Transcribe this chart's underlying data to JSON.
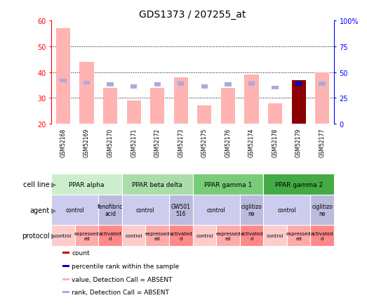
{
  "title": "GDS1373 / 207255_at",
  "samples": [
    "GSM52168",
    "GSM52169",
    "GSM52170",
    "GSM52171",
    "GSM52172",
    "GSM52173",
    "GSM52175",
    "GSM52176",
    "GSM52174",
    "GSM52178",
    "GSM52179",
    "GSM52177"
  ],
  "bar_values": [
    57,
    44,
    34,
    29,
    34,
    38,
    27,
    34,
    39,
    28,
    37,
    40
  ],
  "bar_colors": [
    "#ffb3b3",
    "#ffb3b3",
    "#ffb3b3",
    "#ffb3b3",
    "#ffb3b3",
    "#ffb3b3",
    "#ffb3b3",
    "#ffb3b3",
    "#ffb3b3",
    "#ffb3b3",
    "#8b0000",
    "#ffb3b3"
  ],
  "rank_values": [
    42,
    40,
    38,
    36,
    38,
    39,
    36,
    38,
    39,
    35,
    39,
    39
  ],
  "rank_colors": [
    "#aaaadd",
    "#aaaadd",
    "#aaaadd",
    "#aaaadd",
    "#aaaadd",
    "#aaaadd",
    "#aaaadd",
    "#aaaadd",
    "#aaaadd",
    "#aaaadd",
    "#0000cc",
    "#aaaadd"
  ],
  "ylim_left": [
    20,
    60
  ],
  "ylim_right": [
    0,
    100
  ],
  "yticks_left": [
    20,
    30,
    40,
    50,
    60
  ],
  "ytick_labels_left": [
    "20",
    "30",
    "40",
    "50",
    "60"
  ],
  "yticks_right": [
    0,
    25,
    50,
    75,
    100
  ],
  "ytick_labels_right": [
    "0",
    "25",
    "50",
    "75",
    "100%"
  ],
  "cell_lines": [
    {
      "label": "PPAR alpha",
      "start": 0,
      "end": 3,
      "color": "#cceecc"
    },
    {
      "label": "PPAR beta delta",
      "start": 3,
      "end": 6,
      "color": "#aaddaa"
    },
    {
      "label": "PPAR gamma 1",
      "start": 6,
      "end": 9,
      "color": "#77cc77"
    },
    {
      "label": "PPAR gamma 2",
      "start": 9,
      "end": 12,
      "color": "#44aa44"
    }
  ],
  "agents": [
    {
      "label": "control",
      "start": 0,
      "end": 2,
      "color": "#ccccee"
    },
    {
      "label": "fenofibric\nacid",
      "start": 2,
      "end": 3,
      "color": "#bbbbdd"
    },
    {
      "label": "control",
      "start": 3,
      "end": 5,
      "color": "#ccccee"
    },
    {
      "label": "GW501\n516",
      "start": 5,
      "end": 6,
      "color": "#bbbbdd"
    },
    {
      "label": "control",
      "start": 6,
      "end": 8,
      "color": "#ccccee"
    },
    {
      "label": "ciglitizo\nne",
      "start": 8,
      "end": 9,
      "color": "#bbbbdd"
    },
    {
      "label": "control",
      "start": 9,
      "end": 11,
      "color": "#ccccee"
    },
    {
      "label": "ciglitizo\nne",
      "start": 11,
      "end": 12,
      "color": "#bbbbdd"
    }
  ],
  "protocols": [
    {
      "label": "control",
      "start": 0,
      "end": 1,
      "color": "#ffcccc"
    },
    {
      "label": "expressed\ned",
      "start": 1,
      "end": 2,
      "color": "#ffaaaa"
    },
    {
      "label": "activated\nd",
      "start": 2,
      "end": 3,
      "color": "#ff8888"
    },
    {
      "label": "control",
      "start": 3,
      "end": 4,
      "color": "#ffcccc"
    },
    {
      "label": "expressed\ned",
      "start": 4,
      "end": 5,
      "color": "#ffaaaa"
    },
    {
      "label": "activated\nd",
      "start": 5,
      "end": 6,
      "color": "#ff8888"
    },
    {
      "label": "control",
      "start": 6,
      "end": 7,
      "color": "#ffcccc"
    },
    {
      "label": "expressed\ned",
      "start": 7,
      "end": 8,
      "color": "#ffaaaa"
    },
    {
      "label": "activated\nd",
      "start": 8,
      "end": 9,
      "color": "#ff8888"
    },
    {
      "label": "control",
      "start": 9,
      "end": 10,
      "color": "#ffcccc"
    },
    {
      "label": "expressed\ned",
      "start": 10,
      "end": 11,
      "color": "#ffaaaa"
    },
    {
      "label": "activated\nd",
      "start": 11,
      "end": 12,
      "color": "#ff8888"
    }
  ],
  "legend_items": [
    {
      "label": "count",
      "color": "#cc0000"
    },
    {
      "label": "percentile rank within the sample",
      "color": "#0000cc"
    },
    {
      "label": "value, Detection Call = ABSENT",
      "color": "#ffb3b3"
    },
    {
      "label": "rank, Detection Call = ABSENT",
      "color": "#aaaadd"
    }
  ],
  "row_labels": [
    "cell line",
    "agent",
    "protocol"
  ],
  "sample_bg": "#c8c8c8",
  "background_color": "#ffffff"
}
